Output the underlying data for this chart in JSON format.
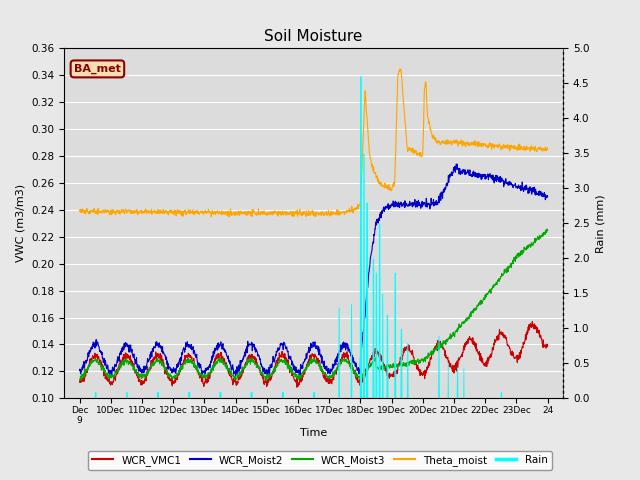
{
  "title": "Soil Moisture",
  "ylabel_left": "VWC (m3/m3)",
  "ylabel_right": "Rain (mm)",
  "xlabel": "Time",
  "ylim_left": [
    0.1,
    0.36
  ],
  "ylim_right": [
    0.0,
    5.0
  ],
  "yticks_left": [
    0.1,
    0.12,
    0.14,
    0.16,
    0.18,
    0.2,
    0.22,
    0.24,
    0.26,
    0.28,
    0.3,
    0.32,
    0.34,
    0.36
  ],
  "yticks_right": [
    0.0,
    0.5,
    1.0,
    1.5,
    2.0,
    2.5,
    3.0,
    3.5,
    4.0,
    4.5,
    5.0
  ],
  "annotation": "BA_met",
  "annotation_color": "#8B0000",
  "annotation_bg": "#F5DEB3",
  "colors": {
    "WCR_VMC1": "#CC0000",
    "WCR_Moist2": "#0000CC",
    "WCR_Moist3": "#00AA00",
    "Theta_moist": "#FFA500",
    "Rain": "#00FFFF"
  },
  "fig_bg": "#E8E8E8",
  "plot_bg": "#DCDCDC",
  "grid_color": "#FFFFFF",
  "xlim": [
    8.5,
    24.5
  ],
  "xtick_days": [
    9,
    10,
    11,
    12,
    13,
    14,
    15,
    16,
    17,
    18,
    19,
    20,
    21,
    22,
    23,
    24
  ]
}
